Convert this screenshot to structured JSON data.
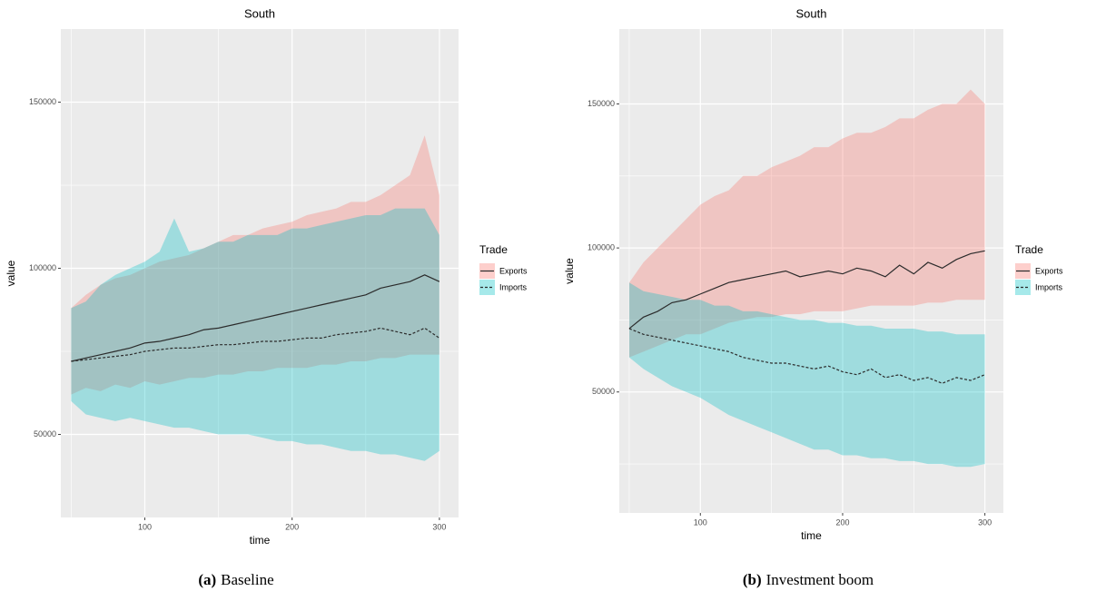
{
  "chart_data": [
    {
      "type": "line",
      "title": "South",
      "x_label": "time",
      "y_label": "value",
      "caption": {
        "label": "(a)",
        "text": "Baseline"
      },
      "legend_title": "Trade",
      "legend": "right",
      "grid": true,
      "x": [
        50,
        60,
        70,
        80,
        90,
        100,
        110,
        120,
        130,
        140,
        150,
        160,
        170,
        180,
        190,
        200,
        210,
        220,
        230,
        240,
        250,
        260,
        270,
        280,
        290,
        300
      ],
      "xlim": [
        43,
        313
      ],
      "xticks": [
        100,
        200,
        300
      ],
      "minor_xticks": [
        50,
        150,
        250
      ],
      "ylim": [
        25000,
        172000
      ],
      "yticks": [
        50000,
        100000,
        150000
      ],
      "minor_yticks": [
        75000,
        125000
      ],
      "series": [
        {
          "name": "Exports",
          "color": "#f8766d",
          "line_color": "#2b2b2b",
          "linetype": "solid",
          "values": [
            72000,
            73000,
            74000,
            75000,
            76000,
            77500,
            78000,
            79000,
            80000,
            81500,
            82000,
            83000,
            84000,
            85000,
            86000,
            87000,
            88000,
            89000,
            90000,
            91000,
            92000,
            94000,
            95000,
            96000,
            98000,
            96000
          ],
          "lower": [
            62000,
            64000,
            63000,
            65000,
            64000,
            66000,
            65000,
            66000,
            67000,
            67000,
            68000,
            68000,
            69000,
            69000,
            70000,
            70000,
            70000,
            71000,
            71000,
            72000,
            72000,
            73000,
            73000,
            74000,
            74000,
            74000
          ],
          "upper": [
            88000,
            92000,
            95000,
            97000,
            98000,
            100000,
            102000,
            103000,
            104000,
            106000,
            108000,
            110000,
            110000,
            112000,
            113000,
            114000,
            116000,
            117000,
            118000,
            120000,
            120000,
            122000,
            125000,
            128000,
            140000,
            122000
          ]
        },
        {
          "name": "Imports",
          "color": "#00bfc4",
          "line_color": "#2b2b2b",
          "linetype": "dashed",
          "values": [
            72000,
            72500,
            73000,
            73500,
            74000,
            75000,
            75500,
            76000,
            76000,
            76500,
            77000,
            77000,
            77500,
            78000,
            78000,
            78500,
            79000,
            79000,
            80000,
            80500,
            81000,
            82000,
            81000,
            80000,
            82000,
            79000
          ],
          "lower": [
            60000,
            56000,
            55000,
            54000,
            55000,
            54000,
            53000,
            52000,
            52000,
            51000,
            50000,
            50000,
            50000,
            49000,
            48000,
            48000,
            47000,
            47000,
            46000,
            45000,
            45000,
            44000,
            44000,
            43000,
            42000,
            45000
          ],
          "upper": [
            88000,
            90000,
            95000,
            98000,
            100000,
            102000,
            105000,
            115000,
            105000,
            106000,
            108000,
            108000,
            110000,
            110000,
            110000,
            112000,
            112000,
            113000,
            114000,
            115000,
            116000,
            116000,
            118000,
            118000,
            118000,
            110000
          ]
        }
      ]
    },
    {
      "type": "line",
      "title": "South",
      "x_label": "time",
      "y_label": "value",
      "caption": {
        "label": "(b)",
        "text": "Investment boom"
      },
      "legend_title": "Trade",
      "legend": "right",
      "grid": true,
      "x": [
        50,
        60,
        70,
        80,
        90,
        100,
        110,
        120,
        130,
        140,
        150,
        160,
        170,
        180,
        190,
        200,
        210,
        220,
        230,
        240,
        250,
        260,
        270,
        280,
        290,
        300
      ],
      "xlim": [
        43,
        313
      ],
      "xticks": [
        100,
        200,
        300
      ],
      "minor_xticks": [
        50,
        150,
        250
      ],
      "ylim": [
        8000,
        176000
      ],
      "yticks": [
        50000,
        100000,
        150000
      ],
      "minor_yticks": [
        25000,
        75000,
        125000
      ],
      "series": [
        {
          "name": "Exports",
          "color": "#f8766d",
          "line_color": "#2b2b2b",
          "linetype": "solid",
          "values": [
            72000,
            76000,
            78000,
            81000,
            82000,
            84000,
            86000,
            88000,
            89000,
            90000,
            91000,
            92000,
            90000,
            91000,
            92000,
            91000,
            93000,
            92000,
            90000,
            94000,
            91000,
            95000,
            93000,
            96000,
            98000,
            99000
          ],
          "lower": [
            62000,
            64000,
            66000,
            68000,
            70000,
            70000,
            72000,
            74000,
            75000,
            76000,
            76000,
            77000,
            77000,
            78000,
            78000,
            78000,
            79000,
            80000,
            80000,
            80000,
            80000,
            81000,
            81000,
            82000,
            82000,
            82000
          ],
          "upper": [
            88000,
            95000,
            100000,
            105000,
            110000,
            115000,
            118000,
            120000,
            125000,
            125000,
            128000,
            130000,
            132000,
            135000,
            135000,
            138000,
            140000,
            140000,
            142000,
            145000,
            145000,
            148000,
            150000,
            150000,
            155000,
            150000
          ]
        },
        {
          "name": "Imports",
          "color": "#00bfc4",
          "line_color": "#2b2b2b",
          "linetype": "dashed",
          "values": [
            72000,
            70000,
            69000,
            68000,
            67000,
            66000,
            65000,
            64000,
            62000,
            61000,
            60000,
            60000,
            59000,
            58000,
            59000,
            57000,
            56000,
            58000,
            55000,
            56000,
            54000,
            55000,
            53000,
            55000,
            54000,
            56000
          ],
          "lower": [
            62000,
            58000,
            55000,
            52000,
            50000,
            48000,
            45000,
            42000,
            40000,
            38000,
            36000,
            34000,
            32000,
            30000,
            30000,
            28000,
            28000,
            27000,
            27000,
            26000,
            26000,
            25000,
            25000,
            24000,
            24000,
            25000
          ],
          "upper": [
            88000,
            85000,
            84000,
            83000,
            82000,
            82000,
            80000,
            80000,
            78000,
            78000,
            77000,
            76000,
            75000,
            75000,
            74000,
            74000,
            73000,
            73000,
            72000,
            72000,
            72000,
            71000,
            71000,
            70000,
            70000,
            70000
          ]
        }
      ]
    }
  ]
}
